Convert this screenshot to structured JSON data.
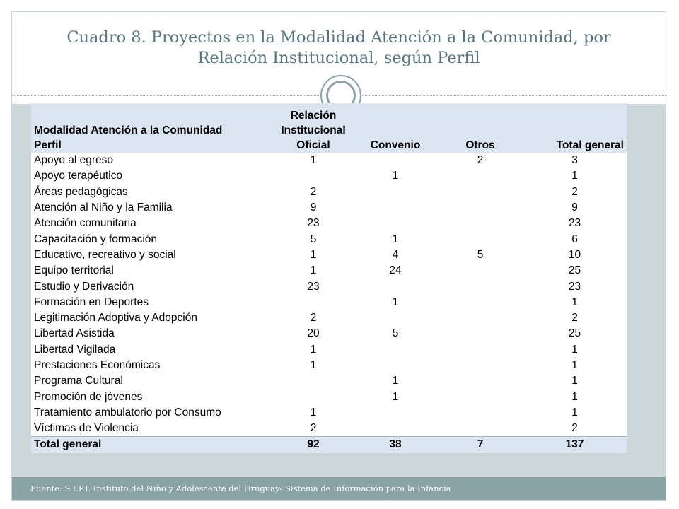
{
  "title": "Cuadro 8. Proyectos en la Modalidad Atención a la Comunidad, por Relación Institucional, según Perfil",
  "footer": "Fuente: S.I.P.I. Instituto del Niño y Adolescente del Uruguay- Sistema de Información para la Infancia",
  "table": {
    "header": {
      "col0_line1": "Modalidad Atención a la Comunidad",
      "col0_line2": "Perfil",
      "col1_line1": "Relación",
      "col1_line2": "Institucional",
      "col1_line3": "Oficial",
      "col2": "Convenio",
      "col3": "Otros",
      "col4": "Total general"
    },
    "rows": [
      {
        "perfil": "Apoyo al egreso",
        "oficial": "1",
        "convenio": "",
        "otros": "2",
        "total": "3"
      },
      {
        "perfil": "Apoyo terapéutico",
        "oficial": "",
        "convenio": "1",
        "otros": "",
        "total": "1"
      },
      {
        "perfil": "Áreas pedagógicas",
        "oficial": "2",
        "convenio": "",
        "otros": "",
        "total": "2"
      },
      {
        "perfil": "Atención al Niño y la Familia",
        "oficial": "9",
        "convenio": "",
        "otros": "",
        "total": "9"
      },
      {
        "perfil": "Atención comunitaria",
        "oficial": "23",
        "convenio": "",
        "otros": "",
        "total": "23"
      },
      {
        "perfil": "Capacitación y formación",
        "oficial": "5",
        "convenio": "1",
        "otros": "",
        "total": "6"
      },
      {
        "perfil": "Educativo, recreativo y social",
        "oficial": "1",
        "convenio": "4",
        "otros": "5",
        "total": "10"
      },
      {
        "perfil": "Equipo territorial",
        "oficial": "1",
        "convenio": "24",
        "otros": "",
        "total": "25"
      },
      {
        "perfil": "Estudio y Derivación",
        "oficial": "23",
        "convenio": "",
        "otros": "",
        "total": "23"
      },
      {
        "perfil": "Formación en Deportes",
        "oficial": "",
        "convenio": "1",
        "otros": "",
        "total": "1"
      },
      {
        "perfil": "Legitimación Adoptiva y Adopción",
        "oficial": "2",
        "convenio": "",
        "otros": "",
        "total": "2"
      },
      {
        "perfil": "Libertad Asistida",
        "oficial": "20",
        "convenio": "5",
        "otros": "",
        "total": "25"
      },
      {
        "perfil": "Libertad Vigilada",
        "oficial": "1",
        "convenio": "",
        "otros": "",
        "total": "1"
      },
      {
        "perfil": "Prestaciones Económicas",
        "oficial": "1",
        "convenio": "",
        "otros": "",
        "total": "1"
      },
      {
        "perfil": "Programa Cultural",
        "oficial": "",
        "convenio": "1",
        "otros": "",
        "total": "1"
      },
      {
        "perfil": "Promoción de jóvenes",
        "oficial": "",
        "convenio": "1",
        "otros": "",
        "total": "1"
      },
      {
        "perfil": "Tratamiento ambulatorio por Consumo",
        "oficial": "1",
        "convenio": "",
        "otros": "",
        "total": "1"
      },
      {
        "perfil": "Víctimas de Violencia",
        "oficial": "2",
        "convenio": "",
        "otros": "",
        "total": "2"
      }
    ],
    "total": {
      "perfil": "Total general",
      "oficial": "92",
      "convenio": "38",
      "otros": "7",
      "total": "137"
    }
  }
}
